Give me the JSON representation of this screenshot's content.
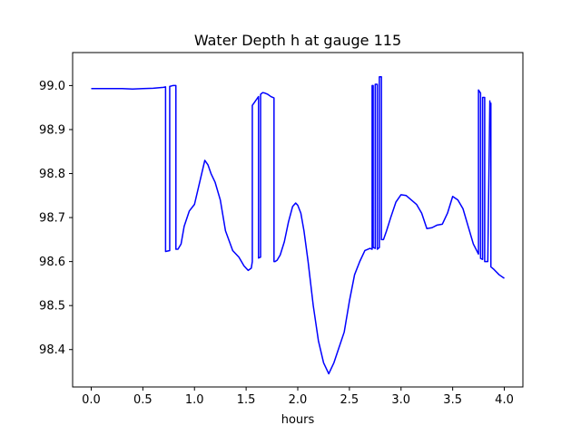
{
  "chart_data": {
    "type": "line",
    "title": "Water Depth h at gauge 115",
    "xlabel": "hours",
    "ylabel": "",
    "xlim": [
      -0.18,
      4.18
    ],
    "ylim": [
      98.315,
      99.075
    ],
    "x_ticks": [
      0.0,
      0.5,
      1.0,
      1.5,
      2.0,
      2.5,
      3.0,
      3.5,
      4.0
    ],
    "x_tick_labels": [
      "0.0",
      "0.5",
      "1.0",
      "1.5",
      "2.0",
      "2.5",
      "3.0",
      "3.5",
      "4.0"
    ],
    "y_ticks": [
      98.4,
      98.5,
      98.6,
      98.7,
      98.8,
      98.9,
      99.0
    ],
    "y_tick_labels": [
      "98.4",
      "98.5",
      "98.6",
      "98.7",
      "98.8",
      "98.9",
      "99.0"
    ],
    "grid": false,
    "series": [
      {
        "color": "#0000ff",
        "x": [
          0.0,
          0.1,
          0.2,
          0.3,
          0.4,
          0.5,
          0.6,
          0.7,
          0.72,
          0.72,
          0.76,
          0.76,
          0.79,
          0.79,
          0.82,
          0.82,
          0.84,
          0.87,
          0.9,
          0.95,
          1.0,
          1.05,
          1.1,
          1.13,
          1.16,
          1.2,
          1.25,
          1.3,
          1.37,
          1.43,
          1.48,
          1.52,
          1.55,
          1.56,
          1.56,
          1.59,
          1.62,
          1.62,
          1.64,
          1.64,
          1.66,
          1.68,
          1.71,
          1.74,
          1.77,
          1.77,
          1.78,
          1.8,
          1.83,
          1.87,
          1.91,
          1.95,
          1.98,
          2.0,
          2.03,
          2.06,
          2.1,
          2.15,
          2.2,
          2.25,
          2.3,
          2.35,
          2.4,
          2.45,
          2.5,
          2.55,
          2.6,
          2.65,
          2.7,
          2.72,
          2.72,
          2.73,
          2.73,
          2.75,
          2.75,
          2.77,
          2.77,
          2.79,
          2.79,
          2.81,
          2.81,
          2.83,
          2.86,
          2.9,
          2.95,
          3.0,
          3.05,
          3.1,
          3.15,
          3.2,
          3.25,
          3.3,
          3.35,
          3.4,
          3.45,
          3.5,
          3.55,
          3.6,
          3.65,
          3.7,
          3.75,
          3.75,
          3.77,
          3.77,
          3.79,
          3.79,
          3.81,
          3.81,
          3.84,
          3.86,
          3.86,
          3.87,
          3.87,
          3.9,
          3.95,
          4.0
        ],
        "y": [
          98.993,
          98.993,
          98.993,
          98.993,
          98.992,
          98.993,
          98.994,
          98.996,
          98.997,
          98.623,
          98.625,
          98.998,
          99.0,
          99.0,
          99.0,
          98.628,
          98.628,
          98.64,
          98.68,
          98.715,
          98.73,
          98.78,
          98.83,
          98.82,
          98.8,
          98.78,
          98.74,
          98.67,
          98.625,
          98.61,
          98.59,
          98.58,
          98.585,
          98.6,
          98.955,
          98.965,
          98.975,
          98.608,
          98.61,
          98.98,
          98.984,
          98.983,
          98.98,
          98.975,
          98.972,
          98.6,
          98.6,
          98.603,
          98.615,
          98.645,
          98.69,
          98.725,
          98.733,
          98.728,
          98.71,
          98.67,
          98.6,
          98.5,
          98.42,
          98.37,
          98.345,
          98.37,
          98.405,
          98.44,
          98.51,
          98.57,
          98.6,
          98.625,
          98.63,
          98.628,
          99.0,
          99.0,
          98.632,
          98.63,
          99.003,
          99.003,
          98.628,
          98.632,
          99.02,
          99.02,
          98.65,
          98.65,
          98.67,
          98.7,
          98.735,
          98.752,
          98.75,
          98.74,
          98.73,
          98.71,
          98.675,
          98.677,
          98.683,
          98.685,
          98.71,
          98.748,
          98.74,
          98.72,
          98.68,
          98.64,
          98.617,
          98.99,
          98.983,
          98.607,
          98.605,
          98.973,
          98.973,
          98.6,
          98.6,
          98.965,
          98.96,
          98.96,
          98.588,
          98.582,
          98.57,
          98.562
        ]
      }
    ]
  }
}
